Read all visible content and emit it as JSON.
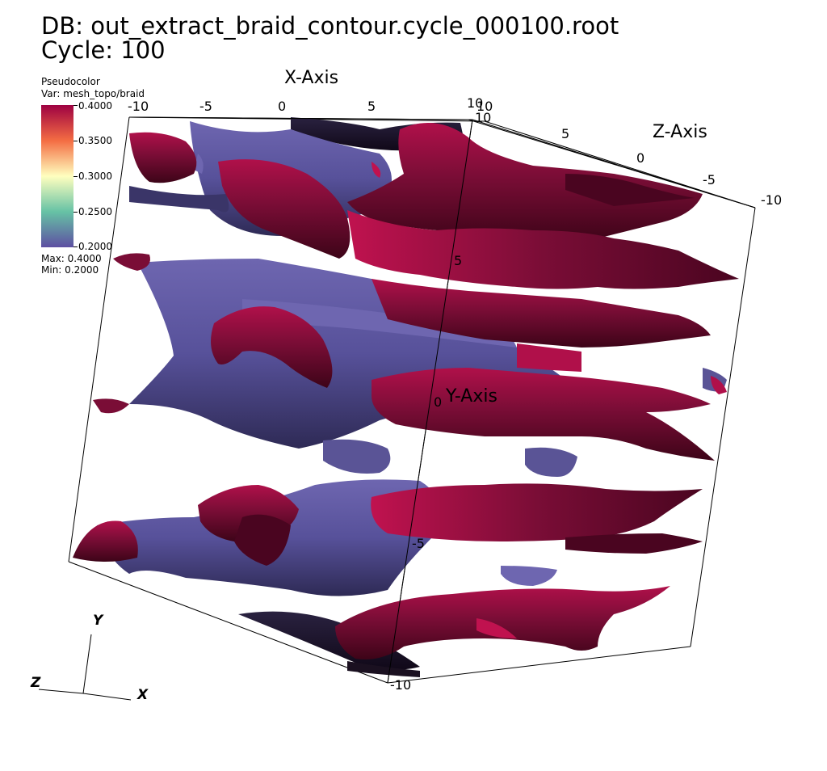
{
  "header": {
    "db_line": "DB: out_extract_braid_contour.cycle_000100.root",
    "cycle_line": "Cycle: 100"
  },
  "legend": {
    "title": "Pseudocolor",
    "var": "Var: mesh_topo/braid",
    "ticks": [
      "0.4000",
      "0.3500",
      "0.3000",
      "0.2500",
      "0.2000"
    ],
    "max": "Max:  0.4000",
    "min": "Min:  0.2000",
    "colors": {
      "top": "#9e0142",
      "upper": "#f46d43",
      "mid": "#ffffbf",
      "lower": "#66c2a5",
      "bottom": "#5e4fa2"
    }
  },
  "axes": {
    "x_title": "X-Axis",
    "y_title": "Y-Axis",
    "z_title": "Z-Axis",
    "x_ticks": [
      "-10",
      "-5",
      "0",
      "5",
      "10"
    ],
    "z_ticks": [
      "10",
      "5",
      "0",
      "-5",
      "-10"
    ],
    "y_ticks": [
      "10",
      "5",
      "0",
      "-5",
      "-10"
    ]
  },
  "triad": {
    "x": "X",
    "y": "Y",
    "z": "Z"
  },
  "colors": {
    "surface_red": "#7a0d36",
    "surface_red_light": "#b0104a",
    "surface_dark_red": "#4a0520",
    "surface_purple": "#5a5496",
    "surface_purple_dark": "#3a3568",
    "surface_purple_light": "#6e66b0"
  }
}
